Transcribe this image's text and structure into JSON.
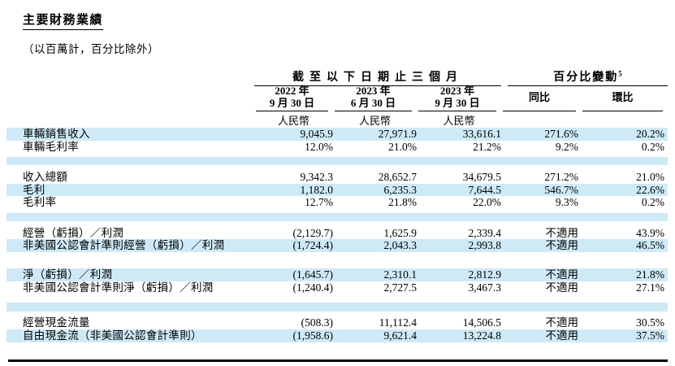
{
  "page": {
    "title": "主要財務業績",
    "subtitle": "（以百萬計，百分比除外）"
  },
  "colors": {
    "highlight": "#CEEAF7",
    "text": "#000000",
    "rule": "#000000"
  },
  "table": {
    "group_headers": [
      {
        "label": "截至以下日期止三個月",
        "superscript": ""
      },
      {
        "label": "百分比變動",
        "superscript": "5"
      }
    ],
    "columns": [
      {
        "line1": "2022 年",
        "line2": "9 月 30 日",
        "currency": "人民幣"
      },
      {
        "line1": "2023 年",
        "line2": "6 月 30 日",
        "currency": "人民幣"
      },
      {
        "line1": "2023 年",
        "line2": "9 月 30 日",
        "currency": "人民幣"
      },
      {
        "label": "同比"
      },
      {
        "label": "環比"
      }
    ],
    "rows": [
      {
        "type": "data",
        "label": "車輛銷售收入",
        "values": [
          "9,045.9",
          "27,971.9",
          "33,616.1",
          "271.6%",
          "20.2%"
        ],
        "highlight": true
      },
      {
        "type": "data",
        "label": "車輛毛利率",
        "values": [
          "12.0%",
          "21.0%",
          "21.2%",
          "9.2%",
          "0.2%"
        ],
        "highlight": false
      },
      {
        "type": "spacer",
        "highlight": true,
        "tall": false
      },
      {
        "type": "data",
        "label": "收入總額",
        "values": [
          "9,342.3",
          "28,652.7",
          "34,679.5",
          "271.2%",
          "21.0%"
        ],
        "highlight": false
      },
      {
        "type": "data",
        "label": "毛利",
        "values": [
          "1,182.0",
          "6,235.3",
          "7,644.5",
          "546.7%",
          "22.6%"
        ],
        "highlight": true
      },
      {
        "type": "data",
        "label": "毛利率",
        "values": [
          "12.7%",
          "21.8%",
          "22.0%",
          "9.3%",
          "0.2%"
        ],
        "highlight": false
      },
      {
        "type": "spacer",
        "highlight": true,
        "tall": false
      },
      {
        "type": "data",
        "label": "經營（虧損）／利潤",
        "values": [
          "(2,129.7)",
          "1,625.9",
          "2,339.4",
          "不適用",
          "43.9%"
        ],
        "highlight": false
      },
      {
        "type": "data",
        "label": "非美國公認會計準則經營（虧損）／利潤",
        "values": [
          "(1,724.4)",
          "2,043.3",
          "2,993.8",
          "不適用",
          "46.5%"
        ],
        "highlight": true
      },
      {
        "type": "spacer",
        "highlight": false,
        "tall": false
      },
      {
        "type": "data",
        "label": "淨（虧損）／利潤",
        "values": [
          "(1,645.7)",
          "2,310.1",
          "2,812.9",
          "不適用",
          "21.8%"
        ],
        "highlight": true
      },
      {
        "type": "data",
        "label": "非美國公認會計準則淨（虧損）／利潤",
        "values": [
          "(1,240.4)",
          "2,727.5",
          "3,467.3",
          "不適用",
          "27.1%"
        ],
        "highlight": false
      },
      {
        "type": "spacer",
        "highlight": true,
        "tall": true
      },
      {
        "type": "data",
        "label": "經營現金流量",
        "values": [
          "(508.3)",
          "11,112.4",
          "14,506.5",
          "不適用",
          "30.5%"
        ],
        "highlight": false
      },
      {
        "type": "data",
        "label": "自由現金流（非美國公認會計準則）",
        "values": [
          "(1,958.6)",
          "9,621.4",
          "13,224.8",
          "不適用",
          "37.5%"
        ],
        "highlight": true
      }
    ]
  }
}
